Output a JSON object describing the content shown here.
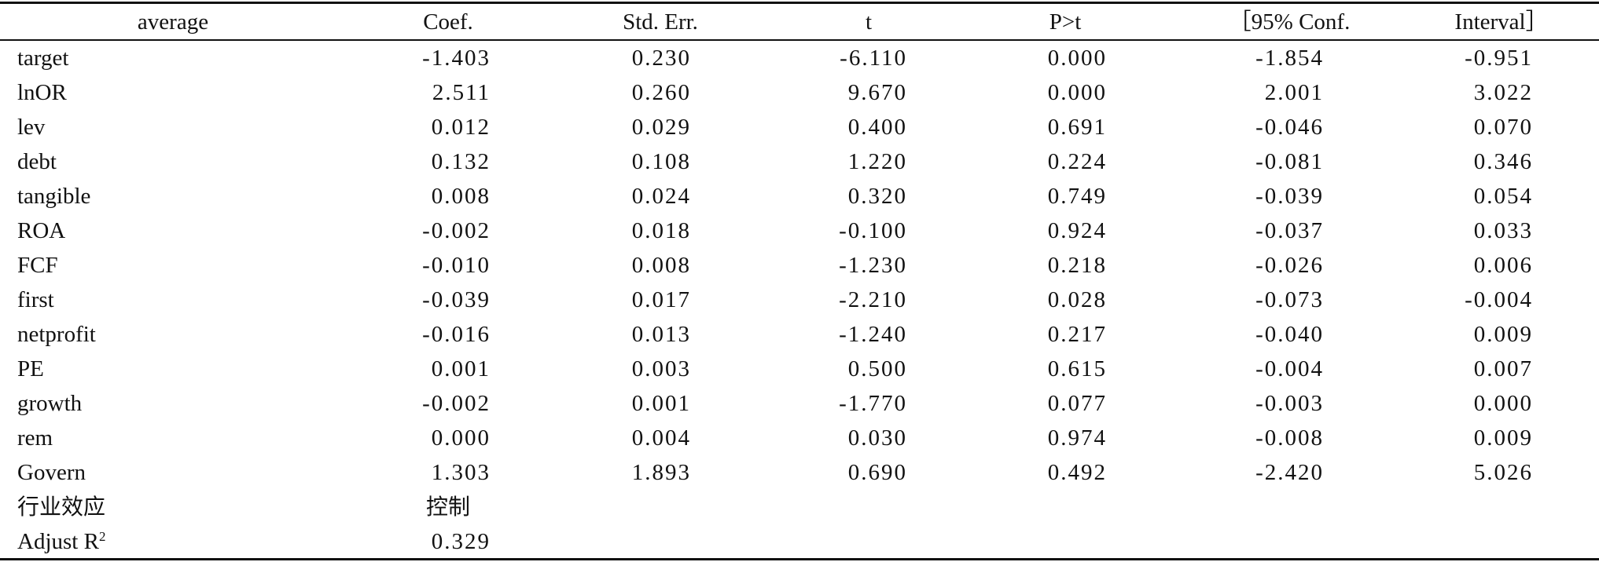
{
  "table": {
    "headers": [
      "average",
      "Coef.",
      "Std. Err.",
      "t",
      "P>t",
      "［95% Conf.",
      "Interval］"
    ],
    "rows": [
      {
        "name": "target",
        "coef": "-1.403",
        "se": "0.230",
        "t": "-6.110",
        "p": "0.000",
        "lo": "-1.854",
        "hi": "-0.951"
      },
      {
        "name": "lnOR",
        "coef": "2.511",
        "se": "0.260",
        "t": "9.670",
        "p": "0.000",
        "lo": "2.001",
        "hi": "3.022"
      },
      {
        "name": "lev",
        "coef": "0.012",
        "se": "0.029",
        "t": "0.400",
        "p": "0.691",
        "lo": "-0.046",
        "hi": "0.070"
      },
      {
        "name": "debt",
        "coef": "0.132",
        "se": "0.108",
        "t": "1.220",
        "p": "0.224",
        "lo": "-0.081",
        "hi": "0.346"
      },
      {
        "name": "tangible",
        "coef": "0.008",
        "se": "0.024",
        "t": "0.320",
        "p": "0.749",
        "lo": "-0.039",
        "hi": "0.054"
      },
      {
        "name": "ROA",
        "coef": "-0.002",
        "se": "0.018",
        "t": "-0.100",
        "p": "0.924",
        "lo": "-0.037",
        "hi": "0.033"
      },
      {
        "name": "FCF",
        "coef": "-0.010",
        "se": "0.008",
        "t": "-1.230",
        "p": "0.218",
        "lo": "-0.026",
        "hi": "0.006"
      },
      {
        "name": "first",
        "coef": "-0.039",
        "se": "0.017",
        "t": "-2.210",
        "p": "0.028",
        "lo": "-0.073",
        "hi": "-0.004"
      },
      {
        "name": "netprofit",
        "coef": "-0.016",
        "se": "0.013",
        "t": "-1.240",
        "p": "0.217",
        "lo": "-0.040",
        "hi": "0.009"
      },
      {
        "name": "PE",
        "coef": "0.001",
        "se": "0.003",
        "t": "0.500",
        "p": "0.615",
        "lo": "-0.004",
        "hi": "0.007"
      },
      {
        "name": "growth",
        "coef": "-0.002",
        "se": "0.001",
        "t": "-1.770",
        "p": "0.077",
        "lo": "-0.003",
        "hi": "0.000"
      },
      {
        "name": "rem",
        "coef": "0.000",
        "se": "0.004",
        "t": "0.030",
        "p": "0.974",
        "lo": "-0.008",
        "hi": "0.009"
      },
      {
        "name": "Govern",
        "coef": "1.303",
        "se": "1.893",
        "t": "0.690",
        "p": "0.492",
        "lo": "-2.420",
        "hi": "5.026"
      }
    ],
    "industry": {
      "label": "行业效应",
      "value": "控制"
    },
    "adjr2": {
      "label": "Adjust R",
      "sup": "2",
      "value": "0.329"
    }
  }
}
